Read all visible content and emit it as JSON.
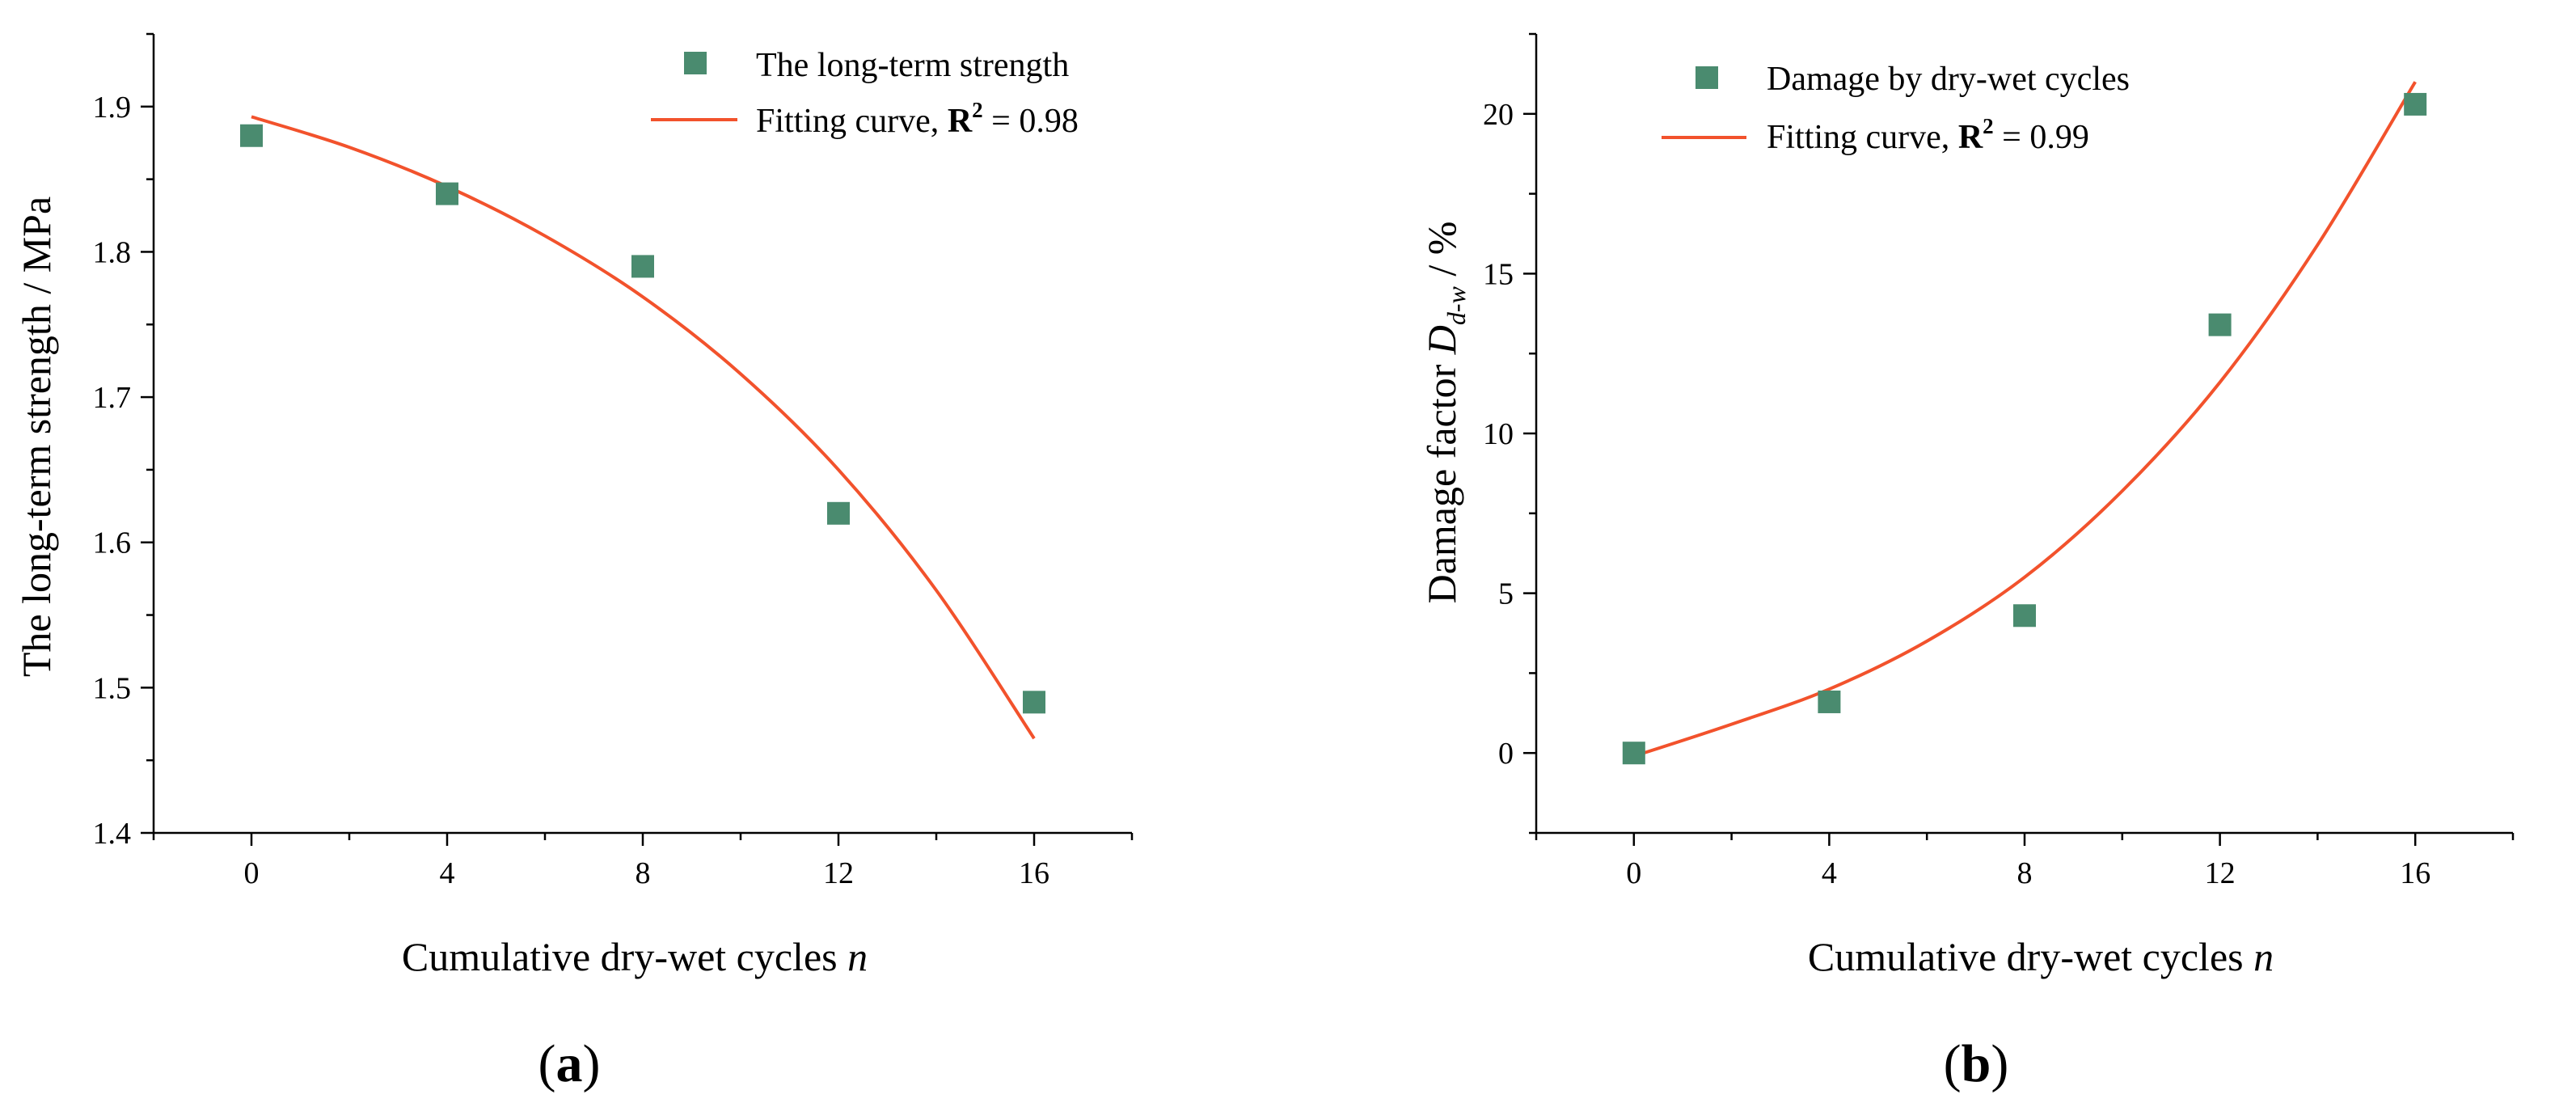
{
  "colors": {
    "marker": "#4A8B6F",
    "fit": "#F2522C",
    "axis": "#000000"
  },
  "chart_data": [
    {
      "type": "scatter",
      "panel_label": {
        "open": "(",
        "letter": "a",
        "close": ")"
      },
      "xlabel": "Cumulative dry-wet cycles ",
      "xlabel_var": "n",
      "ylabel": "The long-term strength / MPa",
      "xlim": [
        -2,
        18
      ],
      "ylim": [
        1.4,
        1.95
      ],
      "xticks": [
        0,
        4,
        8,
        12,
        16
      ],
      "xtick_labels": [
        "0",
        "4",
        "8",
        "12",
        "16"
      ],
      "yticks": [
        1.4,
        1.5,
        1.6,
        1.7,
        1.8,
        1.9
      ],
      "ytick_labels": [
        "1.4",
        "1.5",
        "1.6",
        "1.7",
        "1.8",
        "1.9"
      ],
      "series": [
        {
          "name": "The long-term strength",
          "kind": "points",
          "x": [
            0,
            4,
            8,
            12,
            16
          ],
          "values": [
            1.88,
            1.84,
            1.79,
            1.62,
            1.49
          ]
        },
        {
          "name": "Fitting curve, ",
          "kind": "fit",
          "r2_label": "R",
          "r2_sup": "2",
          "r2_value": " = 0.98",
          "x": [
            0,
            2,
            4,
            6,
            8,
            10,
            12,
            14,
            16
          ],
          "values": [
            1.893,
            1.872,
            1.845,
            1.811,
            1.769,
            1.716,
            1.65,
            1.567,
            1.465
          ]
        }
      ],
      "legend": "top-right"
    },
    {
      "type": "scatter",
      "panel_label": {
        "open": "(",
        "letter": "b",
        "close": ")"
      },
      "xlabel": "Cumulative dry-wet cycles ",
      "xlabel_var": "n",
      "ylabel_prefix": "Damage factor ",
      "ylabel_var": "D",
      "ylabel_sub": "d-w",
      "ylabel_suffix": " / %",
      "xlim": [
        -2,
        18
      ],
      "ylim": [
        -2.5,
        22.5
      ],
      "xticks": [
        0,
        4,
        8,
        12,
        16
      ],
      "xtick_labels": [
        "0",
        "4",
        "8",
        "12",
        "16"
      ],
      "yticks": [
        0,
        5,
        10,
        15,
        20
      ],
      "ytick_labels": [
        "0",
        "5",
        "10",
        "15",
        "20"
      ],
      "series": [
        {
          "name": "Damage by dry-wet cycles",
          "kind": "points",
          "x": [
            0,
            4,
            8,
            12,
            16
          ],
          "values": [
            0,
            1.6,
            4.3,
            13.4,
            20.3
          ]
        },
        {
          "name": "Fitting curve, ",
          "kind": "fit",
          "r2_label": "R",
          "r2_sup": "2",
          "r2_value": " = 0.99",
          "x": [
            0,
            2,
            4,
            6,
            8,
            10,
            12,
            14,
            16
          ],
          "values": [
            -0.1,
            0.9,
            2.0,
            3.5,
            5.5,
            8.2,
            11.6,
            15.9,
            21.0
          ]
        }
      ],
      "legend": "top-left"
    }
  ]
}
